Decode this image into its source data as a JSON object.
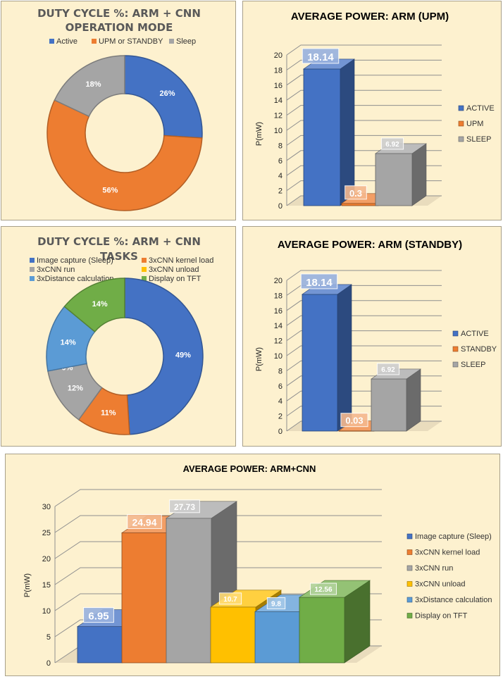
{
  "colors": {
    "blue": "#4472c4",
    "orange": "#ed7d31",
    "gray": "#a5a5a5",
    "yellow": "#ffc000",
    "lightblue": "#5b9bd5",
    "green": "#70ad47",
    "panel_bg": "#fdf1cf"
  },
  "chart_data": [
    {
      "id": "duty_mode",
      "type": "pie",
      "title": "DUTY CYCLE %: ARM + CNN OPERATION MODE",
      "title_lines": [
        "DUTY CYCLE %: ARM + CNN",
        "OPERATION MODE"
      ],
      "categories": [
        "Active",
        "UPM or STANDBY",
        "Sleep"
      ],
      "values": [
        26,
        56,
        18
      ],
      "labels": [
        "26%",
        "56%",
        "18%"
      ],
      "legend": "top"
    },
    {
      "id": "power_upm",
      "type": "bar",
      "title": "AVERAGE POWER: ARM (UPM)",
      "ylabel": "P(mW)",
      "categories": [
        "ACTIVE",
        "UPM",
        "SLEEP"
      ],
      "values": [
        18.14,
        0.3,
        6.92
      ],
      "labels": [
        "18.14",
        "0.3",
        "6.92"
      ],
      "ylim": [
        0,
        20
      ],
      "yticks": [
        0,
        2,
        4,
        6,
        8,
        10,
        12,
        14,
        16,
        18,
        20
      ],
      "legend": "right"
    },
    {
      "id": "duty_tasks",
      "type": "pie",
      "title": "DUTY CYCLE %: ARM + CNN TASKS",
      "title_lines": [
        "DUTY CYCLE %: ARM + CNN",
        "TASKS"
      ],
      "categories": [
        "Image capture (Sleep)",
        "3xCNN kernel load",
        "3xCNN run",
        "3xCNN unload",
        "3xDistance calculation",
        "Display  on TFT"
      ],
      "values": [
        49,
        11,
        12,
        0,
        14,
        14
      ],
      "labels": [
        "49%",
        "11%",
        "12%",
        "0%",
        "14%",
        "14%"
      ],
      "legend": "top"
    },
    {
      "id": "power_standby",
      "type": "bar",
      "title": "AVERAGE POWER: ARM (STANDBY)",
      "ylabel": "P(mW)",
      "categories": [
        "ACTIVE",
        "STANDBY",
        "SLEEP"
      ],
      "values": [
        18.14,
        0.03,
        6.92
      ],
      "labels": [
        "18.14",
        "0.03",
        "6.92"
      ],
      "ylim": [
        0,
        20
      ],
      "yticks": [
        0,
        2,
        4,
        6,
        8,
        10,
        12,
        14,
        16,
        18,
        20
      ],
      "legend": "right"
    },
    {
      "id": "power_cnn",
      "type": "bar",
      "title": "AVERAGE POWER: ARM+CNN",
      "ylabel": "P(mW)",
      "categories": [
        "Image capture (Sleep)",
        "3xCNN kernel load",
        "3xCNN run",
        "3xCNN unload",
        "3xDistance calculation",
        "Display  on TFT"
      ],
      "values": [
        6.95,
        24.94,
        27.73,
        10.7,
        9.8,
        12.56
      ],
      "labels": [
        "6.95",
        "24.94",
        "27.73",
        "10.7",
        "9.8",
        "12.56"
      ],
      "ylim": [
        0,
        30
      ],
      "yticks": [
        0,
        5,
        10,
        15,
        20,
        25,
        30
      ],
      "legend": "right"
    }
  ]
}
